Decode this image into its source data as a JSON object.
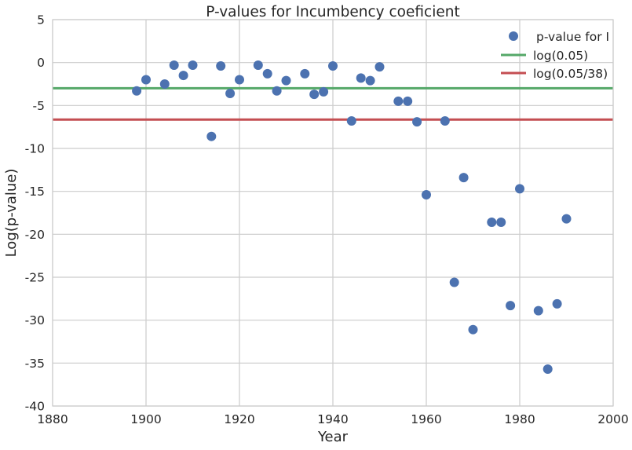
{
  "chart_data": {
    "type": "scatter",
    "title": "P-values for Incumbency coeficient",
    "xlabel": "Year",
    "ylabel": "Log(p-value)",
    "xlim": [
      1880,
      2000
    ],
    "ylim": [
      -40,
      5
    ],
    "xticks": [
      1880,
      1900,
      1920,
      1940,
      1960,
      1980,
      2000
    ],
    "yticks": [
      5,
      0,
      -5,
      -10,
      -15,
      -20,
      -25,
      -30,
      -35,
      -40
    ],
    "grid": true,
    "legend_position": "top-right",
    "colors": {
      "points": "#4c72b0",
      "line1": "#55a868",
      "line2": "#c44e52",
      "grid": "#cccccc"
    },
    "series": [
      {
        "name": "p-value for I",
        "kind": "points",
        "x": [
          1898,
          1900,
          1904,
          1906,
          1908,
          1910,
          1914,
          1916,
          1918,
          1920,
          1924,
          1926,
          1928,
          1930,
          1934,
          1936,
          1938,
          1940,
          1944,
          1946,
          1948,
          1950,
          1954,
          1956,
          1958,
          1960,
          1964,
          1966,
          1968,
          1970,
          1974,
          1976,
          1978,
          1980,
          1984,
          1986,
          1988,
          1990
        ],
        "y": [
          -3.3,
          -2.0,
          -2.5,
          -0.3,
          -1.5,
          -0.3,
          -8.6,
          -0.4,
          -3.6,
          -2.0,
          -0.3,
          -1.3,
          -3.3,
          -2.1,
          -1.3,
          -3.7,
          -3.4,
          -0.4,
          -6.8,
          -1.8,
          -2.1,
          -0.5,
          -4.5,
          -4.5,
          -6.9,
          -15.4,
          -6.8,
          -25.6,
          -13.4,
          -31.1,
          -18.6,
          -18.6,
          -28.3,
          -14.7,
          -28.9,
          -35.7,
          -28.1,
          -18.2
        ]
      },
      {
        "name": "log(0.05)",
        "kind": "hline",
        "y": -2.9957
      },
      {
        "name": "log(0.05/38)",
        "kind": "hline",
        "y": -6.6333
      }
    ]
  }
}
